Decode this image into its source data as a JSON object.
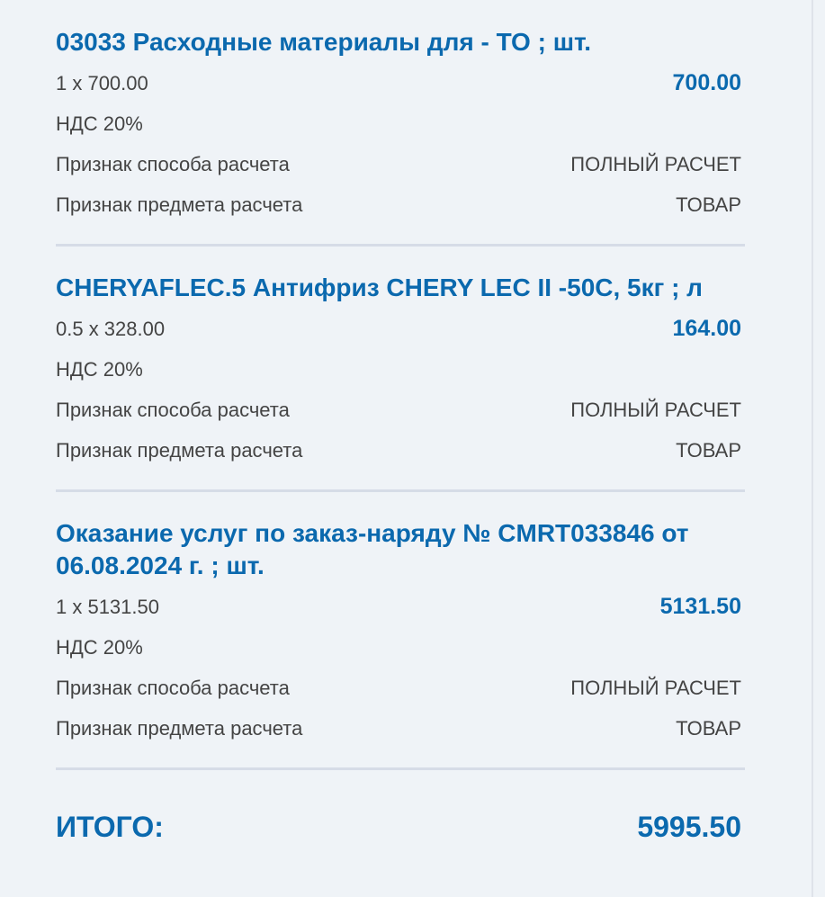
{
  "items": [
    {
      "title": "03033 Расходные материалы для - ТО ; шт.",
      "qty_price": "1 x 700.00",
      "amount": "700.00",
      "vat": "НДС 20%",
      "method_label": "Признак способа расчета",
      "method_value": "ПОЛНЫЙ РАСЧЕТ",
      "subject_label": "Признак предмета расчета",
      "subject_value": "ТОВАР"
    },
    {
      "title": "CHERYAFLEC.5 Антифриз CHERY LEC II -50C, 5кг ; л",
      "qty_price": "0.5 x 328.00",
      "amount": "164.00",
      "vat": "НДС 20%",
      "method_label": "Признак способа расчета",
      "method_value": "ПОЛНЫЙ РАСЧЕТ",
      "subject_label": "Признак предмета расчета",
      "subject_value": "ТОВАР"
    },
    {
      "title": "Оказание услуг по заказ-наряду № CMRT033846 от 06.08.2024 г. ; шт.",
      "qty_price": "1 x 5131.50",
      "amount": "5131.50",
      "vat": "НДС 20%",
      "method_label": "Признак способа расчета",
      "method_value": "ПОЛНЫЙ РАСЧЕТ",
      "subject_label": "Признак предмета расчета",
      "subject_value": "ТОВАР"
    }
  ],
  "total": {
    "label": "ИТОГО:",
    "value": "5995.50"
  },
  "colors": {
    "accent": "#0b69ae",
    "background": "#eff3f7",
    "divider": "#d6dce7"
  }
}
